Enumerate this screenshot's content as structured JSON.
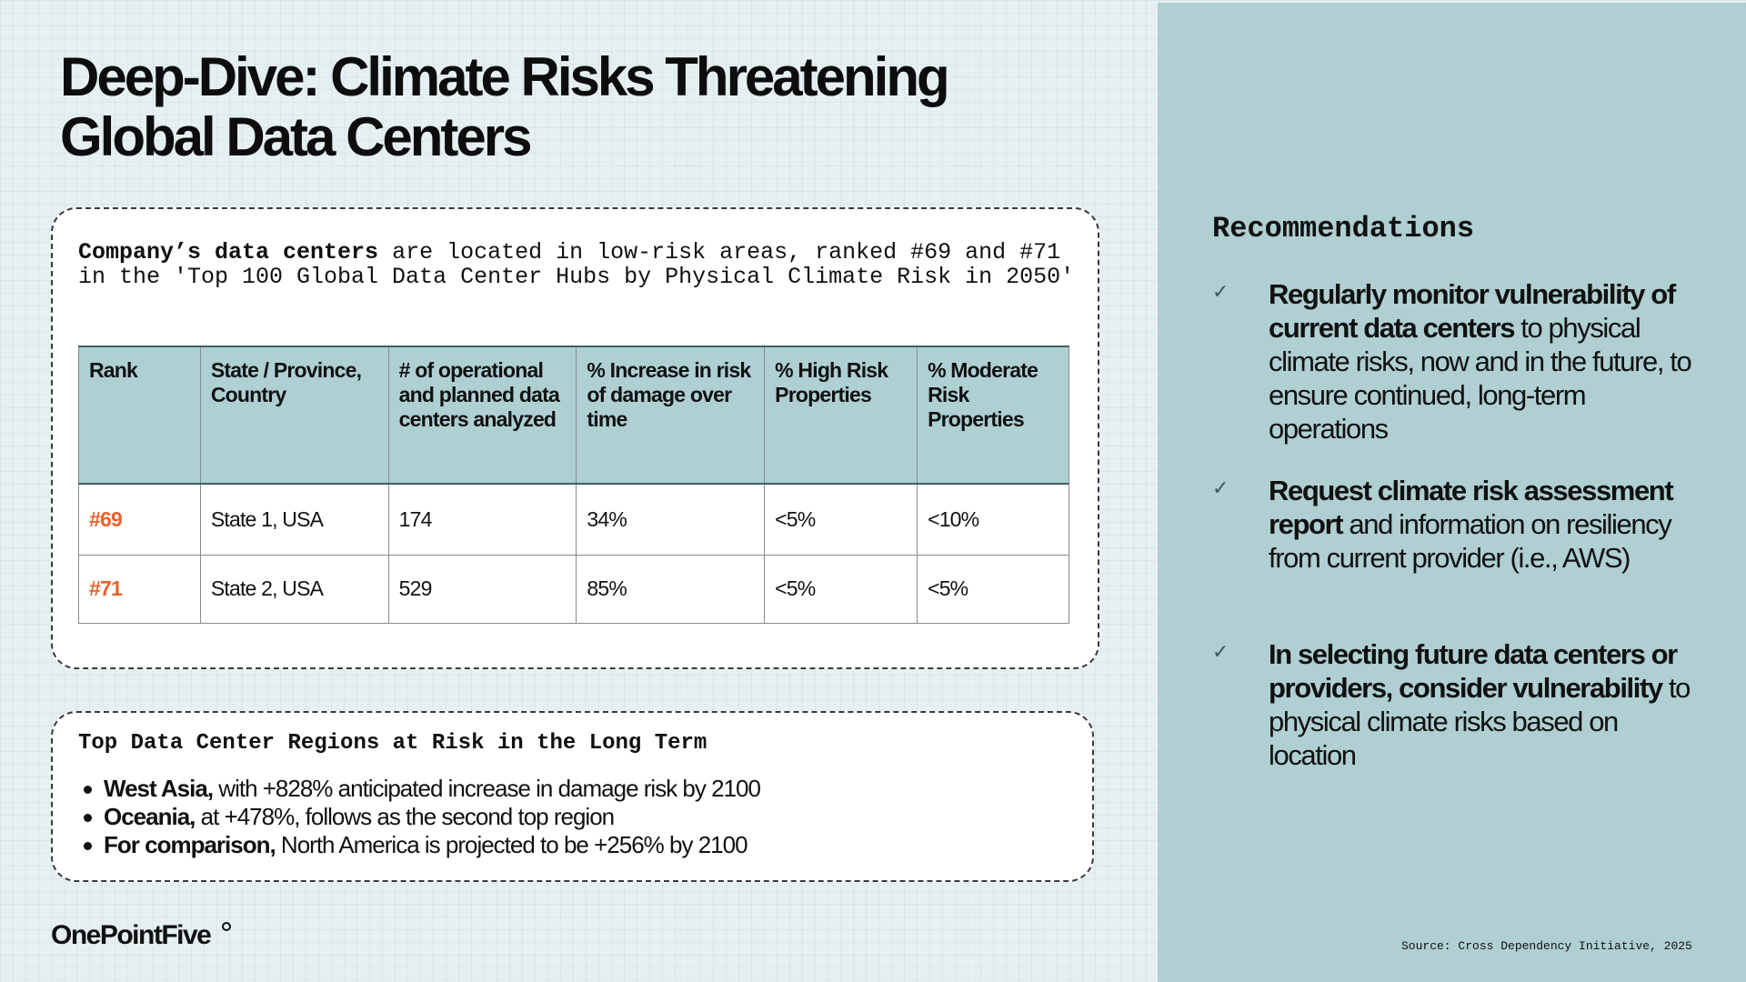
{
  "title": {
    "line1": "Deep-Dive: Climate Risks Threatening",
    "line2": "Global Data Centers"
  },
  "intro": {
    "bold": "Company’s data centers",
    "line1_rest": " are located in low-risk areas, ranked #69 and #71",
    "line2": "in the 'Top 100 Global Data Center Hubs by Physical Climate Risk in 2050'"
  },
  "table": {
    "headers": [
      "Rank",
      "State / Province, Country",
      "# of operational and planned data centers analyzed",
      "% Increase in risk of damage over time",
      "% High Risk Properties",
      "% Moderate Risk Properties"
    ],
    "rows": [
      [
        "#69",
        "State 1, USA",
        "174",
        "34%",
        "<5%",
        "<10%"
      ],
      [
        "#71",
        "State 2, USA",
        "529",
        "85%",
        "<5%",
        "<5%"
      ]
    ],
    "rank_color": "#e8622c",
    "header_color": "#aed0d3"
  },
  "regions": {
    "title": "Top Data Center Regions at Risk in the Long Term",
    "items": [
      {
        "bold": "West Asia,",
        "text": " with +828% anticipated increase in damage risk by 2100"
      },
      {
        "bold": "Oceania,",
        "text": " at +478%, follows as the second top region"
      },
      {
        "bold": "For comparison,",
        "text": " North America is projected to be +256% by 2100"
      }
    ]
  },
  "logo": {
    "text": "OnePointFive"
  },
  "recommendations": {
    "title": "Recommendations",
    "panel_color": "#afcfd2",
    "items": [
      {
        "icon": "check-icon",
        "bold": "Regularly monitor vulnerability of current data centers",
        "text": " to physical climate risks, now and in the future, to ensure continued, long-term operations"
      },
      {
        "icon": "check-icon",
        "bold": "Request climate risk assessment report",
        "text": " and information on resiliency from current provider (i.e., AWS)"
      },
      {
        "icon": "check-icon",
        "bold": "In selecting future data centers or providers, consider vulnerability",
        "text": " to physical climate risks based on location"
      }
    ]
  },
  "source": "Source: Cross Dependency Initiative, 2025"
}
